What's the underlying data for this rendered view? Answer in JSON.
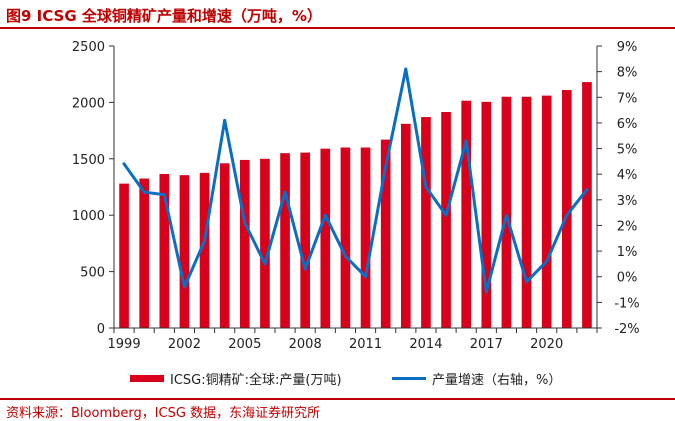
{
  "figure": {
    "title": "图9 ICSG 全球铜精矿产量和增速（万吨，%）",
    "source": "资料来源：Bloomberg，ICSG 数据，东海证券研究所"
  },
  "chart_data": {
    "type": "bar+line",
    "title": "图9 ICSG 全球铜精矿产量和增速（万吨，%）",
    "x": [
      1999,
      2000,
      2001,
      2002,
      2003,
      2004,
      2005,
      2006,
      2007,
      2008,
      2009,
      2010,
      2011,
      2012,
      2013,
      2014,
      2015,
      2016,
      2017,
      2018,
      2019,
      2020,
      2021,
      2022
    ],
    "x_tick_labels": [
      "1999",
      "2002",
      "2005",
      "2008",
      "2011",
      "2014",
      "2017",
      "2020"
    ],
    "left_axis": {
      "ylim": [
        0,
        2500
      ],
      "ticks": [
        "0",
        "500",
        "1000",
        "1500",
        "2000",
        "2500"
      ]
    },
    "right_axis": {
      "ylim": [
        -2,
        9
      ],
      "ticks": [
        "-2%",
        "-1%",
        "0%",
        "1%",
        "2%",
        "3%",
        "4%",
        "5%",
        "6%",
        "7%",
        "8%",
        "9%"
      ]
    },
    "series": [
      {
        "name": "ICSG:铜精矿:全球:产量(万吨)",
        "type": "bar",
        "axis": "left",
        "color": "#d9001b",
        "values": [
          1280,
          1325,
          1365,
          1355,
          1375,
          1460,
          1490,
          1500,
          1550,
          1555,
          1590,
          1600,
          1600,
          1670,
          1810,
          1870,
          1915,
          2015,
          2005,
          2050,
          2050,
          2060,
          2110,
          2180
        ]
      },
      {
        "name": "产量增速（右轴，%）",
        "type": "line",
        "axis": "right",
        "color": "#0a6fc2",
        "values": [
          4.4,
          3.3,
          3.2,
          -0.4,
          1.4,
          6.1,
          2.1,
          0.5,
          3.3,
          0.3,
          2.4,
          0.8,
          0.0,
          4.3,
          8.1,
          3.5,
          2.4,
          5.3,
          -0.6,
          2.4,
          -0.2,
          0.6,
          2.4,
          3.4
        ]
      }
    ],
    "grid": false,
    "legend": "bottom"
  }
}
